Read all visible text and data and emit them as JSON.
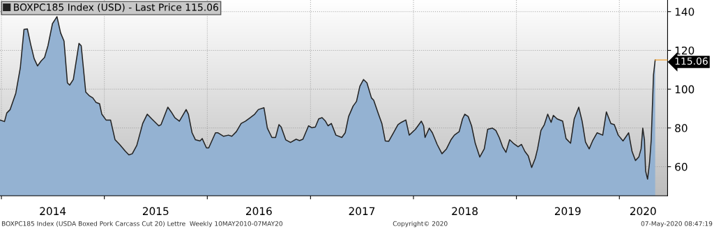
{
  "chart_data": {
    "type": "area",
    "series": [
      {
        "name": "BOXPC185 Index (USD) - Last Price 115.06",
        "color": "#222222",
        "x": [
          "2013-12-27",
          "2014-01-12",
          "2014-01-20",
          "2014-02-01",
          "2014-02-21",
          "2014-03-09",
          "2014-03-22",
          "2014-04-03",
          "2014-04-15",
          "2014-04-27",
          "2014-05-09",
          "2014-05-22",
          "2014-06-03",
          "2014-06-15",
          "2014-07-01",
          "2014-07-17",
          "2014-07-30",
          "2014-08-11",
          "2014-08-23",
          "2014-08-31",
          "2014-09-13",
          "2014-10-03",
          "2014-10-11",
          "2014-10-27",
          "2014-11-08",
          "2014-11-21",
          "2014-12-03",
          "2014-12-15",
          "2014-12-23",
          "2015-01-07",
          "2015-01-23",
          "2015-02-08",
          "2015-02-24",
          "2015-03-17",
          "2015-03-29",
          "2015-04-10",
          "2015-04-26",
          "2015-05-17",
          "2015-06-02",
          "2015-06-18",
          "2015-07-13",
          "2015-07-21",
          "2015-08-14",
          "2015-08-26",
          "2015-09-08",
          "2015-09-24",
          "2015-10-18",
          "2015-10-26",
          "2015-11-08",
          "2015-11-20",
          "2015-12-06",
          "2015-12-14",
          "2015-12-29",
          "2016-01-06",
          "2016-01-30",
          "2016-02-08",
          "2016-02-28",
          "2016-03-16",
          "2016-03-28",
          "2016-04-13",
          "2016-04-30",
          "2016-05-15",
          "2016-06-01",
          "2016-06-17",
          "2016-06-30",
          "2016-07-20",
          "2016-08-01",
          "2016-08-17",
          "2016-08-30",
          "2016-09-11",
          "2016-09-19",
          "2016-10-05",
          "2016-10-22",
          "2016-11-11",
          "2016-11-23",
          "2016-12-05",
          "2016-12-25",
          "2017-01-06",
          "2017-01-18",
          "2017-01-30",
          "2017-02-11",
          "2017-02-23",
          "2017-03-04",
          "2017-03-16",
          "2017-04-01",
          "2017-04-22",
          "2017-05-04",
          "2017-05-16",
          "2017-06-01",
          "2017-06-13",
          "2017-06-25",
          "2017-07-08",
          "2017-07-20",
          "2017-08-05",
          "2017-08-13",
          "2017-08-30",
          "2017-09-11",
          "2017-09-23",
          "2017-10-05",
          "2017-10-22",
          "2017-11-07",
          "2017-11-19",
          "2017-12-05",
          "2017-12-17",
          "2018-01-08",
          "2018-01-29",
          "2018-02-06",
          "2018-02-11",
          "2018-02-26",
          "2018-03-09",
          "2018-03-26",
          "2018-04-12",
          "2018-04-28",
          "2018-05-14",
          "2018-05-26",
          "2018-06-12",
          "2018-06-24",
          "2018-07-02",
          "2018-07-14",
          "2018-07-26",
          "2018-08-08",
          "2018-08-24",
          "2018-09-09",
          "2018-09-21",
          "2018-10-08",
          "2018-10-20",
          "2018-11-01",
          "2018-11-13",
          "2018-11-25",
          "2018-12-08",
          "2018-12-21",
          "2019-01-07",
          "2019-01-19",
          "2019-01-31",
          "2019-02-12",
          "2019-02-24",
          "2019-03-09",
          "2019-03-17",
          "2019-03-29",
          "2019-04-10",
          "2019-04-22",
          "2019-05-04",
          "2019-05-12",
          "2019-05-25",
          "2019-06-14",
          "2019-06-26",
          "2019-07-12",
          "2019-07-25",
          "2019-08-10",
          "2019-08-22",
          "2019-09-03",
          "2019-09-16",
          "2019-09-28",
          "2019-10-14",
          "2019-11-03",
          "2019-11-16",
          "2019-12-02",
          "2019-12-14",
          "2019-12-28",
          "2020-01-14",
          "2020-02-03",
          "2020-02-15",
          "2020-02-27",
          "2020-03-10",
          "2020-03-18",
          "2020-03-24",
          "2020-03-30",
          "2020-04-03",
          "2020-04-10",
          "2020-04-17",
          "2020-04-23",
          "2020-05-01",
          "2020-05-07"
        ],
        "value_labels": [
          null,
          null,
          null,
          null,
          null,
          null,
          null,
          null,
          null,
          null,
          null,
          null,
          null,
          null,
          null,
          null,
          null,
          null,
          null,
          null,
          null,
          null,
          null,
          null,
          null,
          null,
          null,
          null,
          null,
          null,
          null,
          null,
          null,
          null,
          null,
          null,
          null,
          null,
          null,
          null,
          null,
          null,
          null,
          null,
          null,
          null,
          null,
          null,
          null,
          null,
          null,
          null,
          null,
          null,
          null,
          null,
          null,
          null,
          null,
          null,
          null,
          null,
          null,
          null,
          null,
          null,
          null,
          null,
          null,
          null,
          null,
          null,
          null,
          null,
          null,
          null,
          null,
          null,
          null,
          null,
          null,
          null,
          null,
          null,
          null,
          null,
          null,
          null,
          null,
          null,
          null,
          null,
          null,
          null,
          null,
          null,
          null,
          null,
          null,
          null,
          null,
          null,
          null,
          null,
          null,
          null,
          null,
          null,
          null,
          null,
          null,
          null,
          null,
          null,
          null,
          null,
          null,
          null,
          null,
          null,
          null,
          null,
          null,
          null,
          null,
          null,
          null,
          null,
          null,
          null,
          null,
          null,
          null,
          null,
          null,
          null,
          null,
          null,
          null,
          null,
          null,
          null,
          null,
          null,
          null,
          null,
          null,
          null,
          null,
          null,
          null,
          null,
          null,
          null,
          null,
          null,
          null,
          null,
          null,
          null,
          null,
          null,
          null,
          null,
          null,
          null,
          null,
          null,
          null,
          null,
          null,
          null,
          "115.06"
        ],
        "values": [
          84.1,
          83.3,
          87.7,
          89.5,
          97.9,
          111.0,
          130.8,
          131.1,
          123.0,
          115.8,
          112.0,
          114.6,
          116.4,
          122.4,
          133.8,
          137.4,
          129.0,
          124.8,
          103.3,
          102.1,
          105.0,
          123.6,
          122.4,
          98.5,
          96.7,
          95.5,
          93.1,
          92.5,
          87.1,
          84.1,
          84.1,
          73.9,
          71.5,
          67.9,
          66.1,
          66.7,
          71.0,
          82.3,
          87.1,
          84.7,
          81.1,
          81.7,
          90.7,
          88.3,
          85.3,
          83.5,
          89.5,
          87.1,
          77.5,
          73.9,
          73.3,
          74.5,
          69.7,
          69.7,
          77.5,
          77.5,
          75.7,
          76.3,
          75.7,
          78.1,
          82.3,
          83.5,
          85.3,
          87.1,
          89.5,
          90.4,
          79.9,
          75.1,
          75.1,
          81.7,
          80.5,
          73.9,
          72.5,
          74.2,
          73.5,
          74.2,
          81.1,
          80.1,
          80.5,
          84.7,
          85.3,
          83.5,
          81.1,
          82.3,
          76.3,
          75.1,
          77.5,
          85.9,
          91.3,
          93.7,
          101.5,
          105.0,
          103.3,
          95.5,
          94.3,
          87.1,
          82.3,
          73.3,
          73.1,
          77.5,
          81.7,
          82.9,
          84.1,
          76.3,
          79.3,
          83.5,
          81.1,
          75.1,
          79.9,
          77.5,
          71.5,
          66.7,
          69.2,
          73.9,
          76.3,
          78.1,
          84.7,
          87.1,
          85.9,
          81.1,
          72.1,
          65.0,
          69.2,
          79.3,
          79.9,
          78.7,
          75.1,
          70.3,
          67.4,
          73.9,
          72.1,
          70.3,
          71.5,
          67.9,
          65.6,
          59.6,
          64.4,
          69.2,
          78.7,
          81.7,
          87.1,
          82.9,
          86.5,
          84.7,
          83.5,
          74.5,
          72.1,
          84.7,
          90.7,
          83.5,
          72.7,
          69.2,
          73.3,
          77.5,
          76.3,
          88.3,
          82.3,
          81.7,
          76.3,
          73.3,
          77.5,
          67.9,
          63.2,
          65.0,
          69.2,
          79.9,
          73.9,
          57.8,
          53.6,
          62.0,
          73.9,
          107.4,
          115.06
        ]
      }
    ],
    "xlim": [
      "2013-12-27",
      "2020-06-20"
    ],
    "xticks": [
      {
        "value": "2014-01-01",
        "label": null
      },
      {
        "value": "2015-01-01",
        "label": null
      },
      {
        "value": "2016-01-01",
        "label": null
      },
      {
        "value": "2017-01-01",
        "label": null
      },
      {
        "value": "2018-01-01",
        "label": null
      },
      {
        "value": "2019-01-01",
        "label": null
      },
      {
        "value": "2020-01-01",
        "label": null
      },
      {
        "value": "2014-07-02",
        "label": "2014"
      },
      {
        "value": "2015-07-02",
        "label": "2015"
      },
      {
        "value": "2016-07-02",
        "label": "2016"
      },
      {
        "value": "2017-07-02",
        "label": "2017"
      },
      {
        "value": "2018-07-02",
        "label": "2018"
      },
      {
        "value": "2019-07-02",
        "label": "2019"
      },
      {
        "value": "2020-03-25",
        "label": "2020"
      }
    ],
    "ylim": [
      45,
      146
    ],
    "yticks": [
      60,
      80,
      100,
      120,
      140
    ],
    "grid": true,
    "legend": "top left",
    "annotations": [
      "BOXPC185 Index (USDA Boxed Pork Carcass Cut 20) Lettre  Weekly 10MAY2010-07MAY20",
      "Copyright© 2020",
      "07-May-2020 08:47:19"
    ]
  }
}
